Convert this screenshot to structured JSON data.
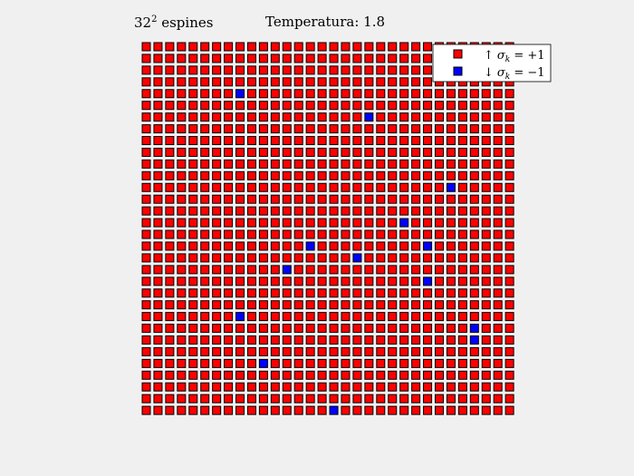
{
  "chart_data": {
    "type": "scatter",
    "title_left": {
      "base": "32",
      "sup": "2",
      "rest": " espines"
    },
    "title_right": "Temperatura: 1.8",
    "grid_size": 32,
    "xlabel": "",
    "ylabel": "",
    "legend": {
      "placement": "top-right",
      "entries": [
        {
          "name": "↑ σ_k = +1",
          "arrow": "↑",
          "sym": "σ",
          "sub": "k",
          "eq": " = +1",
          "color": "#ff0000"
        },
        {
          "name": "↓ σ_k = −1",
          "arrow": "↓",
          "sym": "σ",
          "sub": "k",
          "eq": " = −1",
          "color": "#0000ff"
        }
      ]
    },
    "colors": {
      "up": "#ff0000",
      "down": "#0000ff",
      "edge": "#000000",
      "background": "#f0f0f0"
    },
    "down_spins": [
      {
        "row": 4,
        "col": 8
      },
      {
        "row": 6,
        "col": 19
      },
      {
        "row": 12,
        "col": 26
      },
      {
        "row": 15,
        "col": 22
      },
      {
        "row": 17,
        "col": 14
      },
      {
        "row": 17,
        "col": 24
      },
      {
        "row": 18,
        "col": 18
      },
      {
        "row": 19,
        "col": 12
      },
      {
        "row": 20,
        "col": 24
      },
      {
        "row": 23,
        "col": 8
      },
      {
        "row": 24,
        "col": 28
      },
      {
        "row": 25,
        "col": 28
      },
      {
        "row": 27,
        "col": 10
      },
      {
        "row": 31,
        "col": 16
      }
    ]
  }
}
